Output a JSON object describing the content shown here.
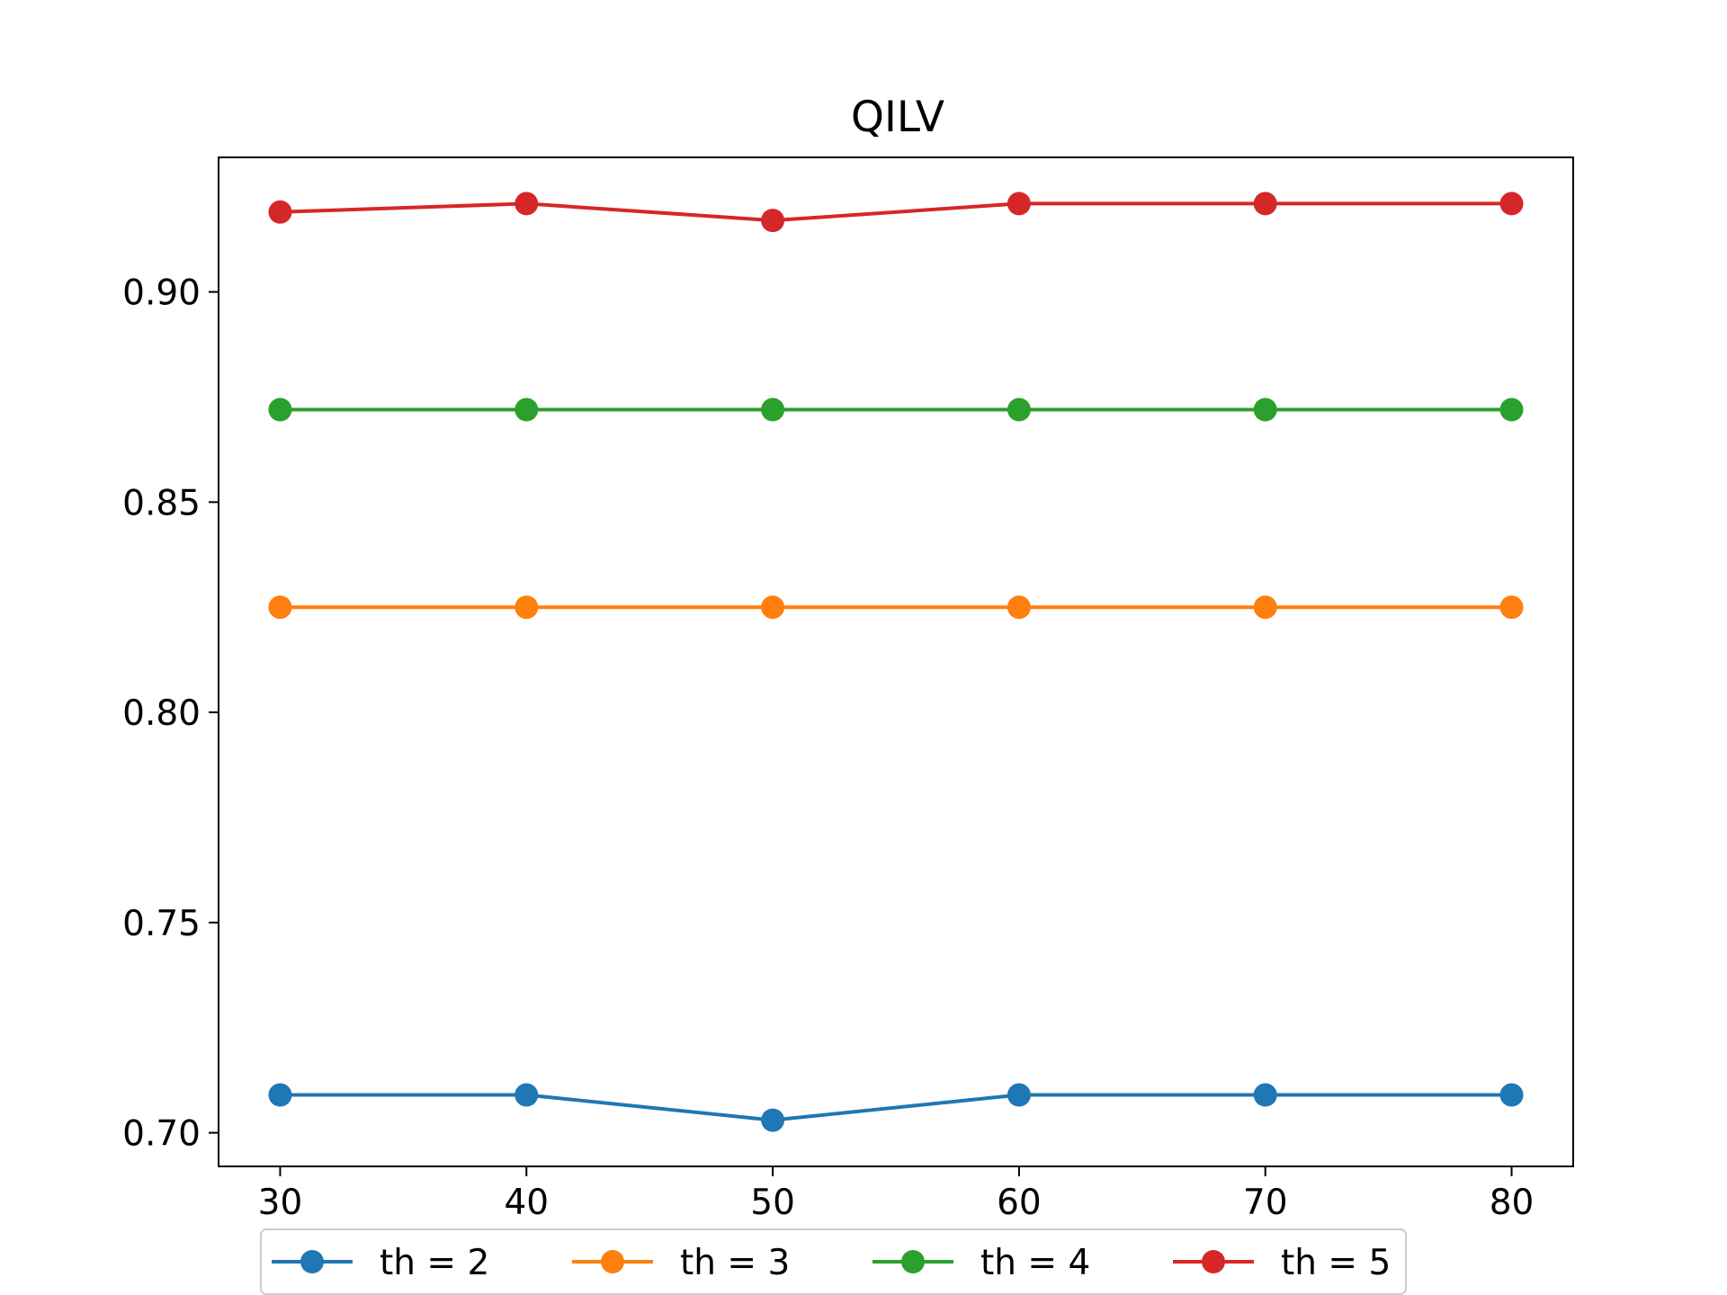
{
  "chart_data": {
    "type": "line",
    "title": "QILV",
    "xlabel": "",
    "ylabel": "",
    "x": [
      30,
      40,
      50,
      60,
      70,
      80
    ],
    "xlim": [
      27.5,
      82.5
    ],
    "ylim": [
      0.692,
      0.932
    ],
    "xticks": [
      "30",
      "40",
      "50",
      "60",
      "70",
      "80"
    ],
    "yticks": [
      "0.70",
      "0.75",
      "0.80",
      "0.85",
      "0.90"
    ],
    "grid": false,
    "legend_position": "bottom-center",
    "series": [
      {
        "name": "th = 2",
        "color": "#1f77b4",
        "values": [
          0.709,
          0.709,
          0.703,
          0.709,
          0.709,
          0.709
        ]
      },
      {
        "name": "th = 3",
        "color": "#ff7f0e",
        "values": [
          0.825,
          0.825,
          0.825,
          0.825,
          0.825,
          0.825
        ]
      },
      {
        "name": "th = 4",
        "color": "#2ca02c",
        "values": [
          0.872,
          0.872,
          0.872,
          0.872,
          0.872,
          0.872
        ]
      },
      {
        "name": "th = 5",
        "color": "#d62728",
        "values": [
          0.919,
          0.921,
          0.917,
          0.921,
          0.921,
          0.921
        ]
      }
    ]
  }
}
